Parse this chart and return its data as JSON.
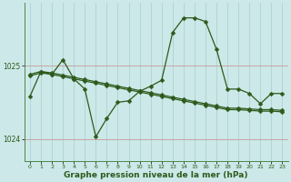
{
  "xlabel": "Graphe pression niveau de la mer (hPa)",
  "bg_color": "#cce8e8",
  "line_color": "#2d5a1b",
  "ylim": [
    1023.7,
    1025.85
  ],
  "yticks": [
    1024,
    1025
  ],
  "xlim": [
    -0.5,
    23.5
  ],
  "xticks": [
    0,
    1,
    2,
    3,
    4,
    5,
    6,
    7,
    8,
    9,
    10,
    11,
    12,
    13,
    14,
    15,
    16,
    17,
    18,
    19,
    20,
    21,
    22,
    23
  ],
  "y_main": [
    1024.58,
    1024.92,
    1024.88,
    1025.08,
    1024.82,
    1024.68,
    1024.03,
    1024.28,
    1024.5,
    1024.52,
    1024.65,
    1024.72,
    1024.8,
    1025.45,
    1025.65,
    1025.65,
    1025.6,
    1025.22,
    1024.68,
    1024.68,
    1024.62,
    1024.48,
    1024.62,
    1024.62
  ],
  "y_trend1": [
    1024.88,
    1024.92,
    1024.9,
    1024.87,
    1024.84,
    1024.81,
    1024.78,
    1024.75,
    1024.72,
    1024.69,
    1024.66,
    1024.63,
    1024.6,
    1024.57,
    1024.54,
    1024.51,
    1024.48,
    1024.45,
    1024.42,
    1024.42,
    1024.41,
    1024.4,
    1024.4,
    1024.39
  ],
  "y_trend2": [
    1024.86,
    1024.9,
    1024.88,
    1024.85,
    1024.82,
    1024.79,
    1024.76,
    1024.73,
    1024.7,
    1024.67,
    1024.64,
    1024.61,
    1024.58,
    1024.55,
    1024.52,
    1024.49,
    1024.46,
    1024.43,
    1024.4,
    1024.4,
    1024.39,
    1024.38,
    1024.38,
    1024.37
  ],
  "marker_size": 2.5,
  "linewidth": 0.9,
  "tick_fontsize": 5.5,
  "xlabel_fontsize": 6.5
}
